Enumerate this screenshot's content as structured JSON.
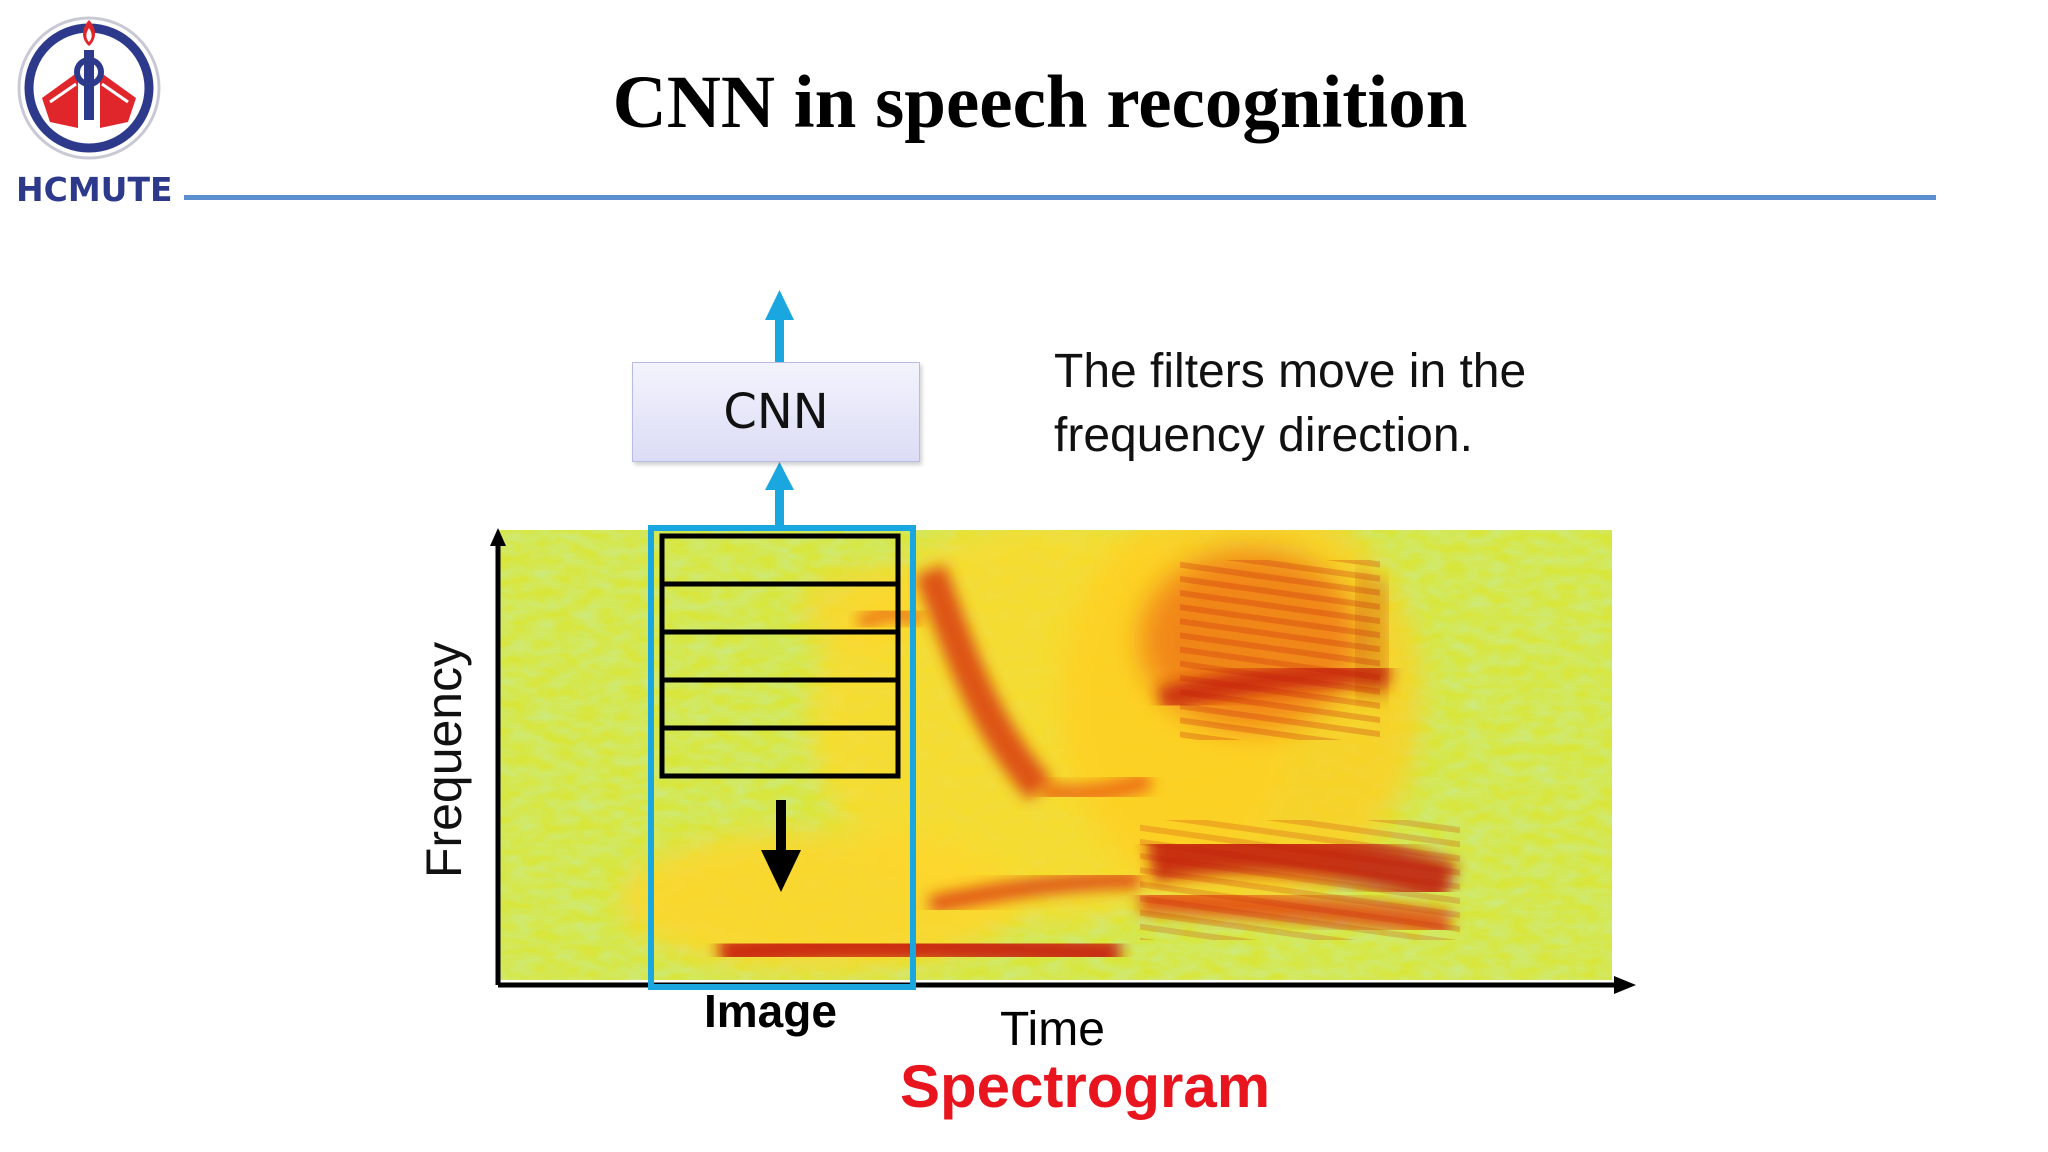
{
  "logo": {
    "text": "HCMUTE"
  },
  "slide": {
    "title": "CNN in speech recognition"
  },
  "diagram": {
    "cnn_label": "CNN",
    "note_line1": "The filters move in the",
    "note_line2": "frequency direction.",
    "y_axis_label": "Frequency",
    "x_axis_label": "Time",
    "window_label": "Image",
    "caption": "Spectrogram",
    "filter_count": 5
  },
  "colors": {
    "accent_blue": "#1aa7e0",
    "rule_blue": "#5b8fd0",
    "caption_red": "#e8141e",
    "logo_navy": "#2d3a8c",
    "logo_red": "#e0262b",
    "spectrogram_low": "#8ed66a",
    "spectrogram_mid": "#ffdc2a",
    "spectrogram_high": "#d42010"
  },
  "icons": {
    "up_arrow": "arrow-up-icon",
    "down_arrow": "arrow-down-icon"
  }
}
